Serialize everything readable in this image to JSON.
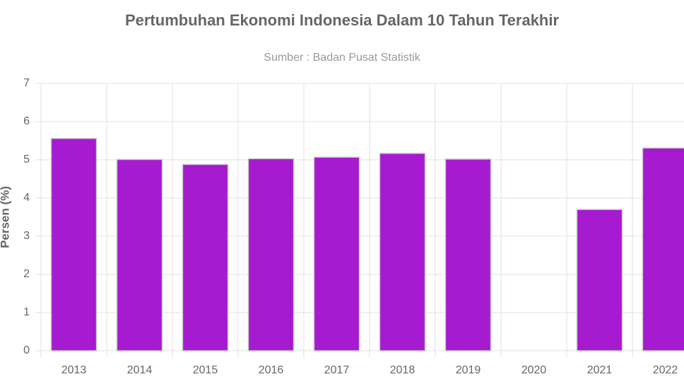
{
  "chart_data": {
    "type": "bar",
    "title": "Pertumbuhan Ekonomi Indonesia Dalam 10 Tahun Terakhir",
    "subtitle": "Sumber : Badan Pusat Statistik",
    "y_label": "Persen (%)",
    "categories": [
      "2013",
      "2014",
      "2015",
      "2016",
      "2017",
      "2018",
      "2019",
      "2020",
      "2021",
      "2022"
    ],
    "values": [
      5.56,
      5.01,
      4.88,
      5.03,
      5.07,
      5.17,
      5.02,
      null,
      3.7,
      5.31
    ],
    "color": "#a61bd0",
    "ylim": [
      0,
      7
    ],
    "yticks": [
      0,
      1,
      2,
      3,
      4,
      5,
      6,
      7
    ],
    "grid": true
  }
}
